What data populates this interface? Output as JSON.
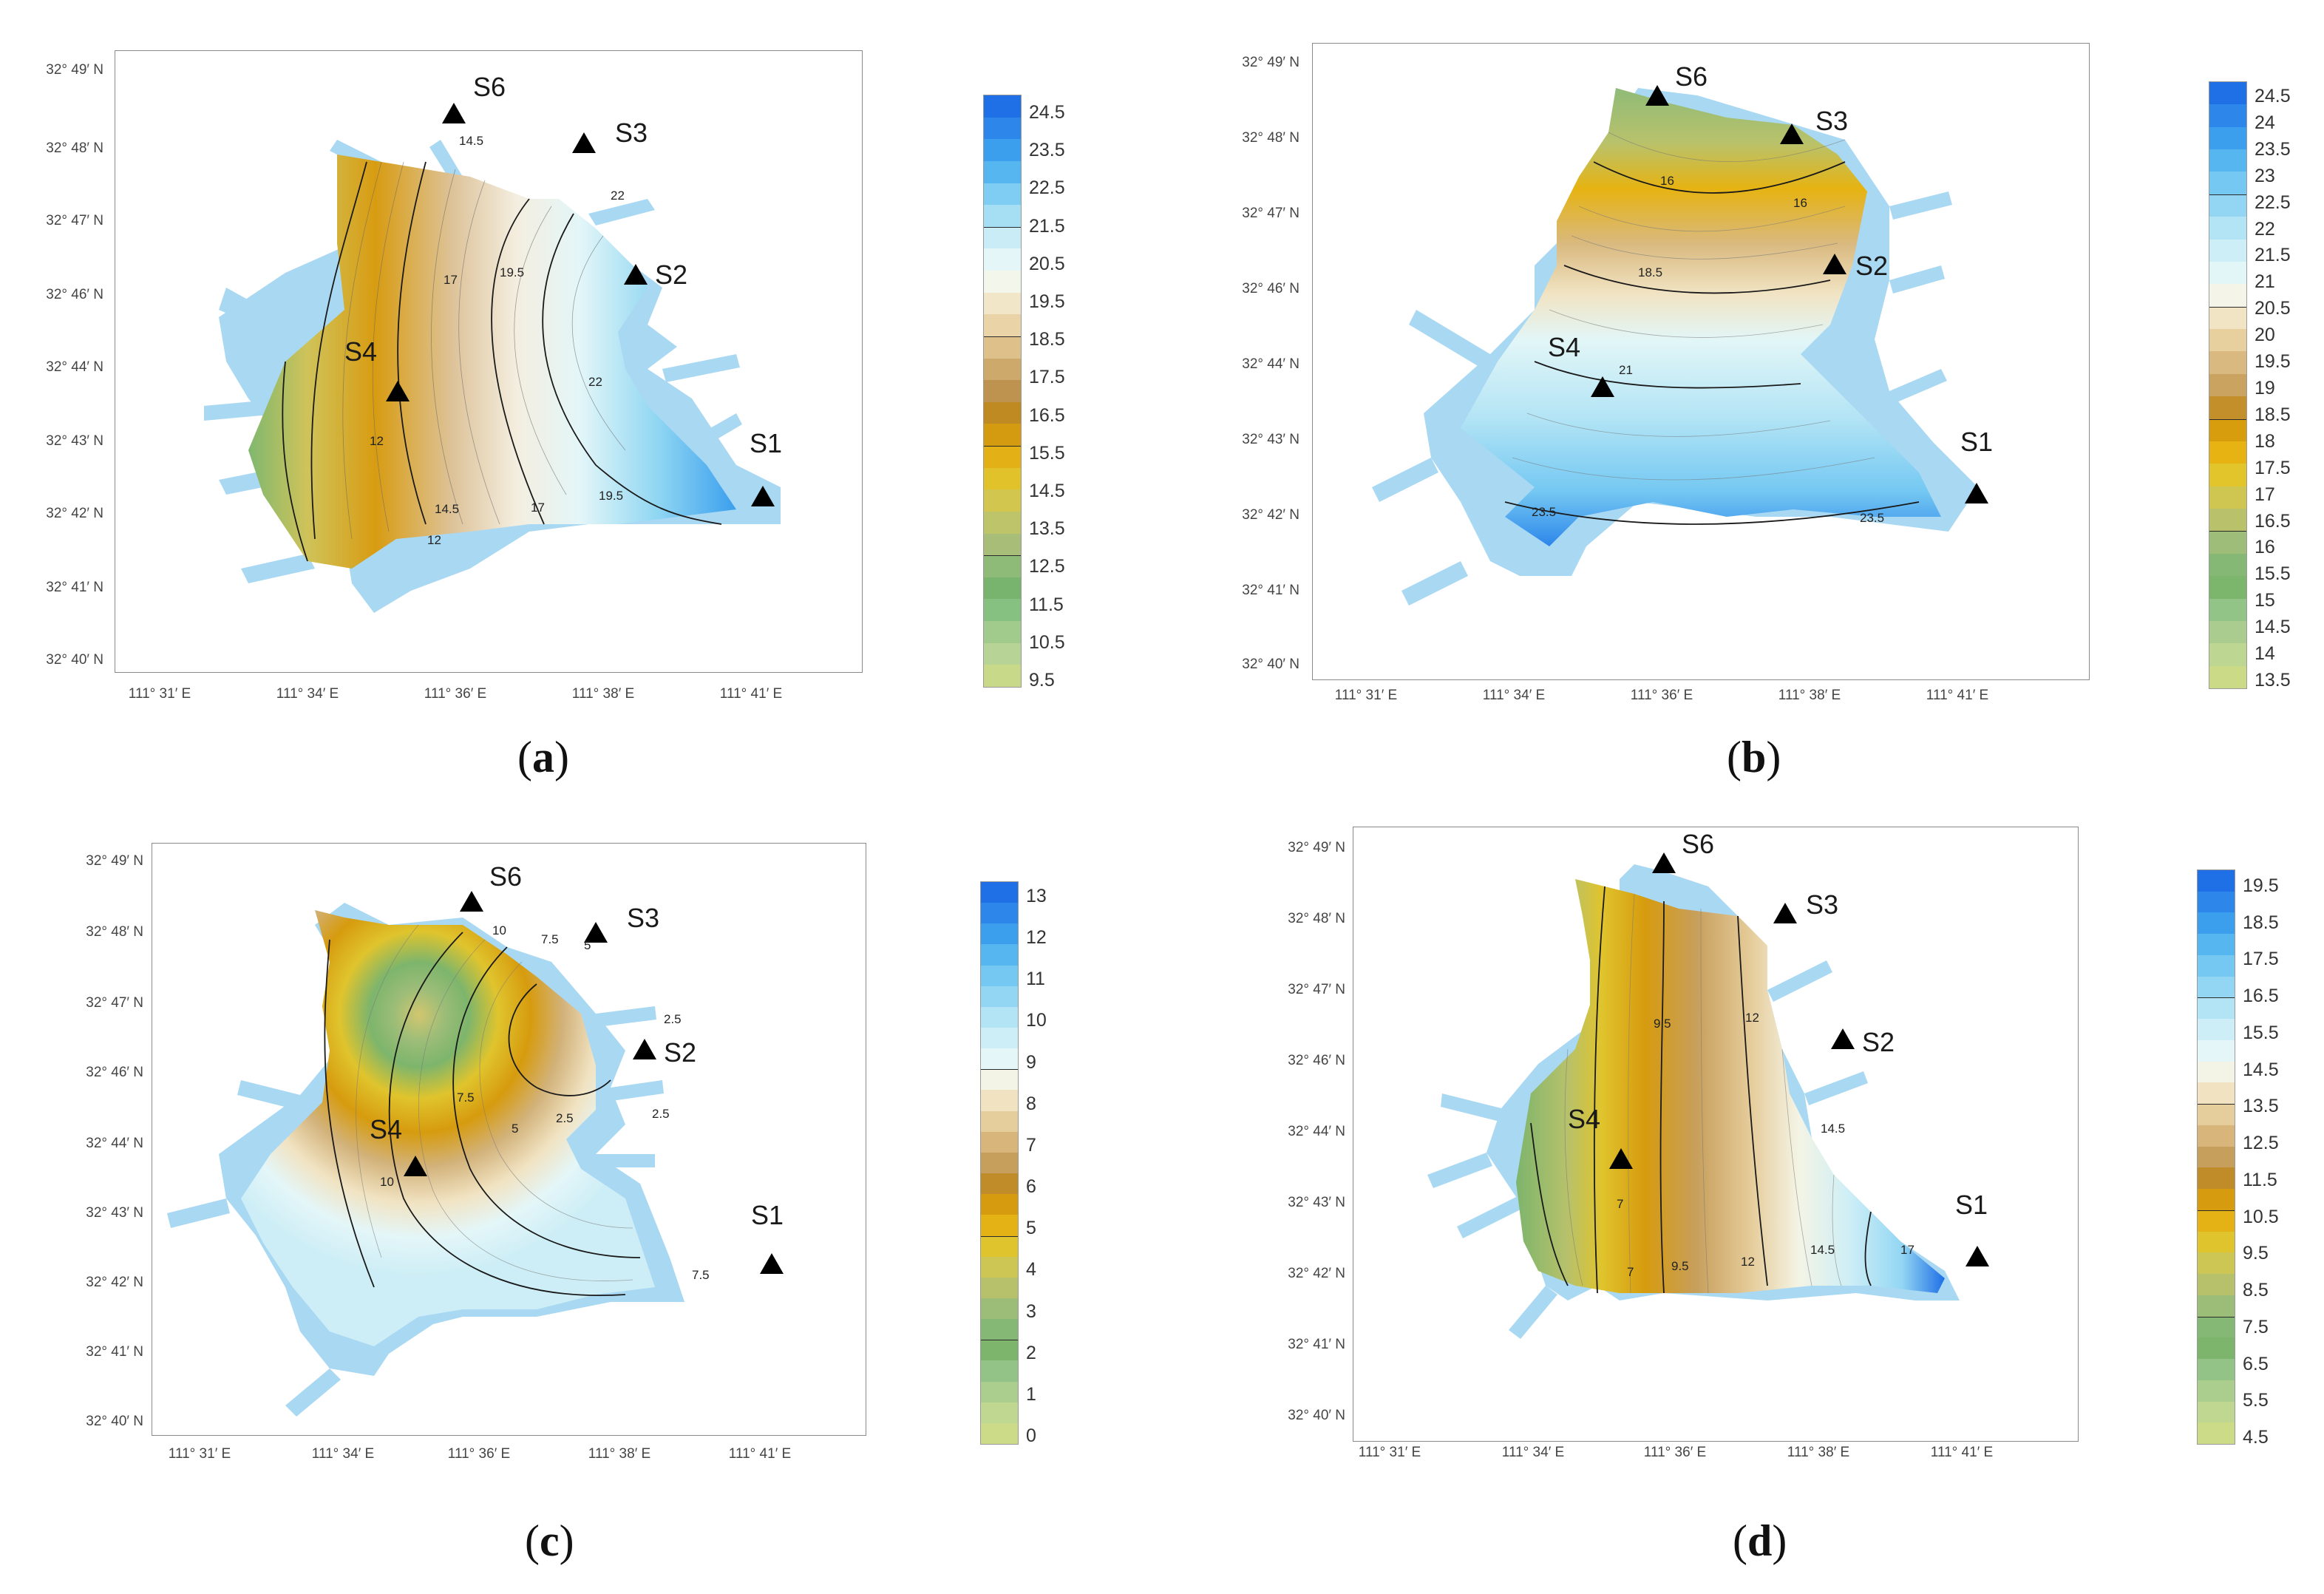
{
  "colors": {
    "water": "#a9d8f3",
    "frame": "#8a8a8a"
  },
  "panels": [
    {
      "id": "a",
      "caption_letter": "a",
      "lat_labels": [
        "32° 49′ N",
        "32° 48′ N",
        "32° 47′ N",
        "32° 46′ N",
        "32° 44′ N",
        "32° 43′ N",
        "32° 42′ N",
        "32° 41′ N",
        "32° 40′ N"
      ],
      "lon_labels": [
        "111° 31′ E",
        "111° 34′ E",
        "111° 36′ E",
        "111° 38′ E",
        "111° 41′ E"
      ],
      "stations": [
        "S6",
        "S3",
        "S2",
        "S4",
        "S1"
      ],
      "contour_labels": [
        "14.5",
        "22",
        "17",
        "19.5",
        "22",
        "12",
        "14.5",
        "17",
        "19.5",
        "12"
      ],
      "colorbar": {
        "labels": [
          "24.5",
          "23.5",
          "22.5",
          "21.5",
          "20.5",
          "19.5",
          "18.5",
          "17.5",
          "16.5",
          "15.5",
          "14.5",
          "13.5",
          "12.5",
          "11.5",
          "10.5",
          "9.5"
        ],
        "colors": [
          "#1f6fe6",
          "#2d86ea",
          "#3b9fee",
          "#55b6f0",
          "#7fcdf2",
          "#a6def4",
          "#c9ecf6",
          "#e4f6f8",
          "#f3f6ea",
          "#f2e6c8",
          "#e9d3a7",
          "#ddc08a",
          "#cda96b",
          "#be934f",
          "#c08a22",
          "#d49a10",
          "#e3b116",
          "#e2c22a",
          "#d2c64f",
          "#bdc46a",
          "#a7bd78",
          "#8fbb78",
          "#79b46e",
          "#87c182",
          "#a0cb8d",
          "#b7d496",
          "#c9d98a"
        ],
        "lines": [
          6,
          11,
          16,
          21
        ]
      }
    },
    {
      "id": "b",
      "caption_letter": "b",
      "lat_labels": [
        "32° 49′ N",
        "32° 48′ N",
        "32° 47′ N",
        "32° 46′ N",
        "32° 44′ N",
        "32° 43′ N",
        "32° 42′ N",
        "32° 41′ N",
        "32° 40′ N"
      ],
      "lon_labels": [
        "111° 31′ E",
        "111° 34′ E",
        "111° 36′ E",
        "111° 38′ E",
        "111° 41′ E"
      ],
      "stations": [
        "S6",
        "S3",
        "S2",
        "S4",
        "S1"
      ],
      "contour_labels": [
        "16",
        "16",
        "18.5",
        "21",
        "23.5",
        "23.5"
      ],
      "colorbar": {
        "labels": [
          "24.5",
          "24",
          "23.5",
          "23",
          "22.5",
          "22",
          "21.5",
          "21",
          "20.5",
          "20",
          "19.5",
          "19",
          "18.5",
          "18",
          "17.5",
          "17",
          "16.5",
          "16",
          "15.5",
          "15",
          "14.5",
          "14",
          "13.5"
        ],
        "colors": [
          "#1f6fe6",
          "#2d86ea",
          "#3b9fee",
          "#55b6f0",
          "#74c8f2",
          "#93d6f3",
          "#b3e4f5",
          "#cdeef6",
          "#e2f6f7",
          "#f4f4e8",
          "#f1e4c4",
          "#e7cf9e",
          "#d9b97f",
          "#c9a35f",
          "#c28f2a",
          "#d89d0c",
          "#e6b312",
          "#e1c52b",
          "#cfc652",
          "#b9c26b",
          "#9dbd78",
          "#84b874",
          "#7cb56c",
          "#92c387",
          "#aacd8f",
          "#bdd692",
          "#cbda86"
        ],
        "lines": [
          5,
          10,
          15,
          20
        ]
      }
    },
    {
      "id": "c",
      "caption_letter": "c",
      "lat_labels": [
        "32° 49′ N",
        "32° 48′ N",
        "32° 47′ N",
        "32° 46′ N",
        "32° 44′ N",
        "32° 43′ N",
        "32° 42′ N",
        "32° 41′ N",
        "32° 40′ N"
      ],
      "lon_labels": [
        "111° 31′ E",
        "111° 34′ E",
        "111° 36′ E",
        "111° 38′ E",
        "111° 41′ E"
      ],
      "stations": [
        "S6",
        "S3",
        "S2",
        "S4",
        "S1"
      ],
      "contour_labels": [
        "10",
        "7.5",
        "5",
        "2.5",
        "2.5",
        "2.5",
        "10",
        "7.5",
        "5",
        "7.5"
      ],
      "colorbar": {
        "labels": [
          "13",
          "12",
          "11",
          "10",
          "9",
          "8",
          "7",
          "6",
          "5",
          "4",
          "3",
          "2",
          "1",
          "0"
        ],
        "colors": [
          "#1f6fe6",
          "#2d86ea",
          "#3b9fee",
          "#55b6f0",
          "#74c8f2",
          "#93d6f3",
          "#b3e4f5",
          "#cdeef6",
          "#e4f6f8",
          "#f4f4e6",
          "#f1e3c2",
          "#e6cd9c",
          "#d8b67b",
          "#c79f5c",
          "#c08c2a",
          "#d69b0e",
          "#e4b214",
          "#e0c42d",
          "#cdc554",
          "#b7c16b",
          "#9cbd78",
          "#84b874",
          "#7db56c",
          "#93c386",
          "#abcd8e",
          "#bfd790",
          "#ccdb87"
        ],
        "lines": [
          9,
          17,
          22
        ]
      }
    },
    {
      "id": "d",
      "caption_letter": "d",
      "lat_labels": [
        "32° 49′ N",
        "32° 48′ N",
        "32° 47′ N",
        "32° 46′ N",
        "32° 44′ N",
        "32° 43′ N",
        "32° 42′ N",
        "32° 41′ N",
        "32° 40′ N"
      ],
      "lon_labels": [
        "111° 31′ E",
        "111° 34′ E",
        "111° 36′ E",
        "111° 38′ E",
        "111° 41′ E"
      ],
      "stations": [
        "S6",
        "S3",
        "S2",
        "S4",
        "S1"
      ],
      "contour_labels": [
        "9.5",
        "12",
        "14.5",
        "7",
        "9.5",
        "12",
        "14.5",
        "17",
        "7"
      ],
      "colorbar": {
        "labels": [
          "19.5",
          "18.5",
          "17.5",
          "16.5",
          "15.5",
          "14.5",
          "13.5",
          "12.5",
          "11.5",
          "10.5",
          "9.5",
          "8.5",
          "7.5",
          "6.5",
          "5.5",
          "4.5"
        ],
        "colors": [
          "#1f6fe6",
          "#2d86ea",
          "#3b9fee",
          "#55b6f0",
          "#74c8f2",
          "#93d6f3",
          "#b3e4f5",
          "#cdeef6",
          "#e4f6f8",
          "#f4f4e6",
          "#f1e3c2",
          "#e6cd9c",
          "#d8b67b",
          "#c79f5c",
          "#c08c2a",
          "#d69b0e",
          "#e4b214",
          "#e0c42d",
          "#cdc554",
          "#b7c16b",
          "#9cbd78",
          "#84b874",
          "#7db56c",
          "#93c386",
          "#abcd8e",
          "#bfd790",
          "#ccdb87"
        ],
        "lines": [
          6,
          11,
          16,
          21
        ]
      }
    }
  ]
}
